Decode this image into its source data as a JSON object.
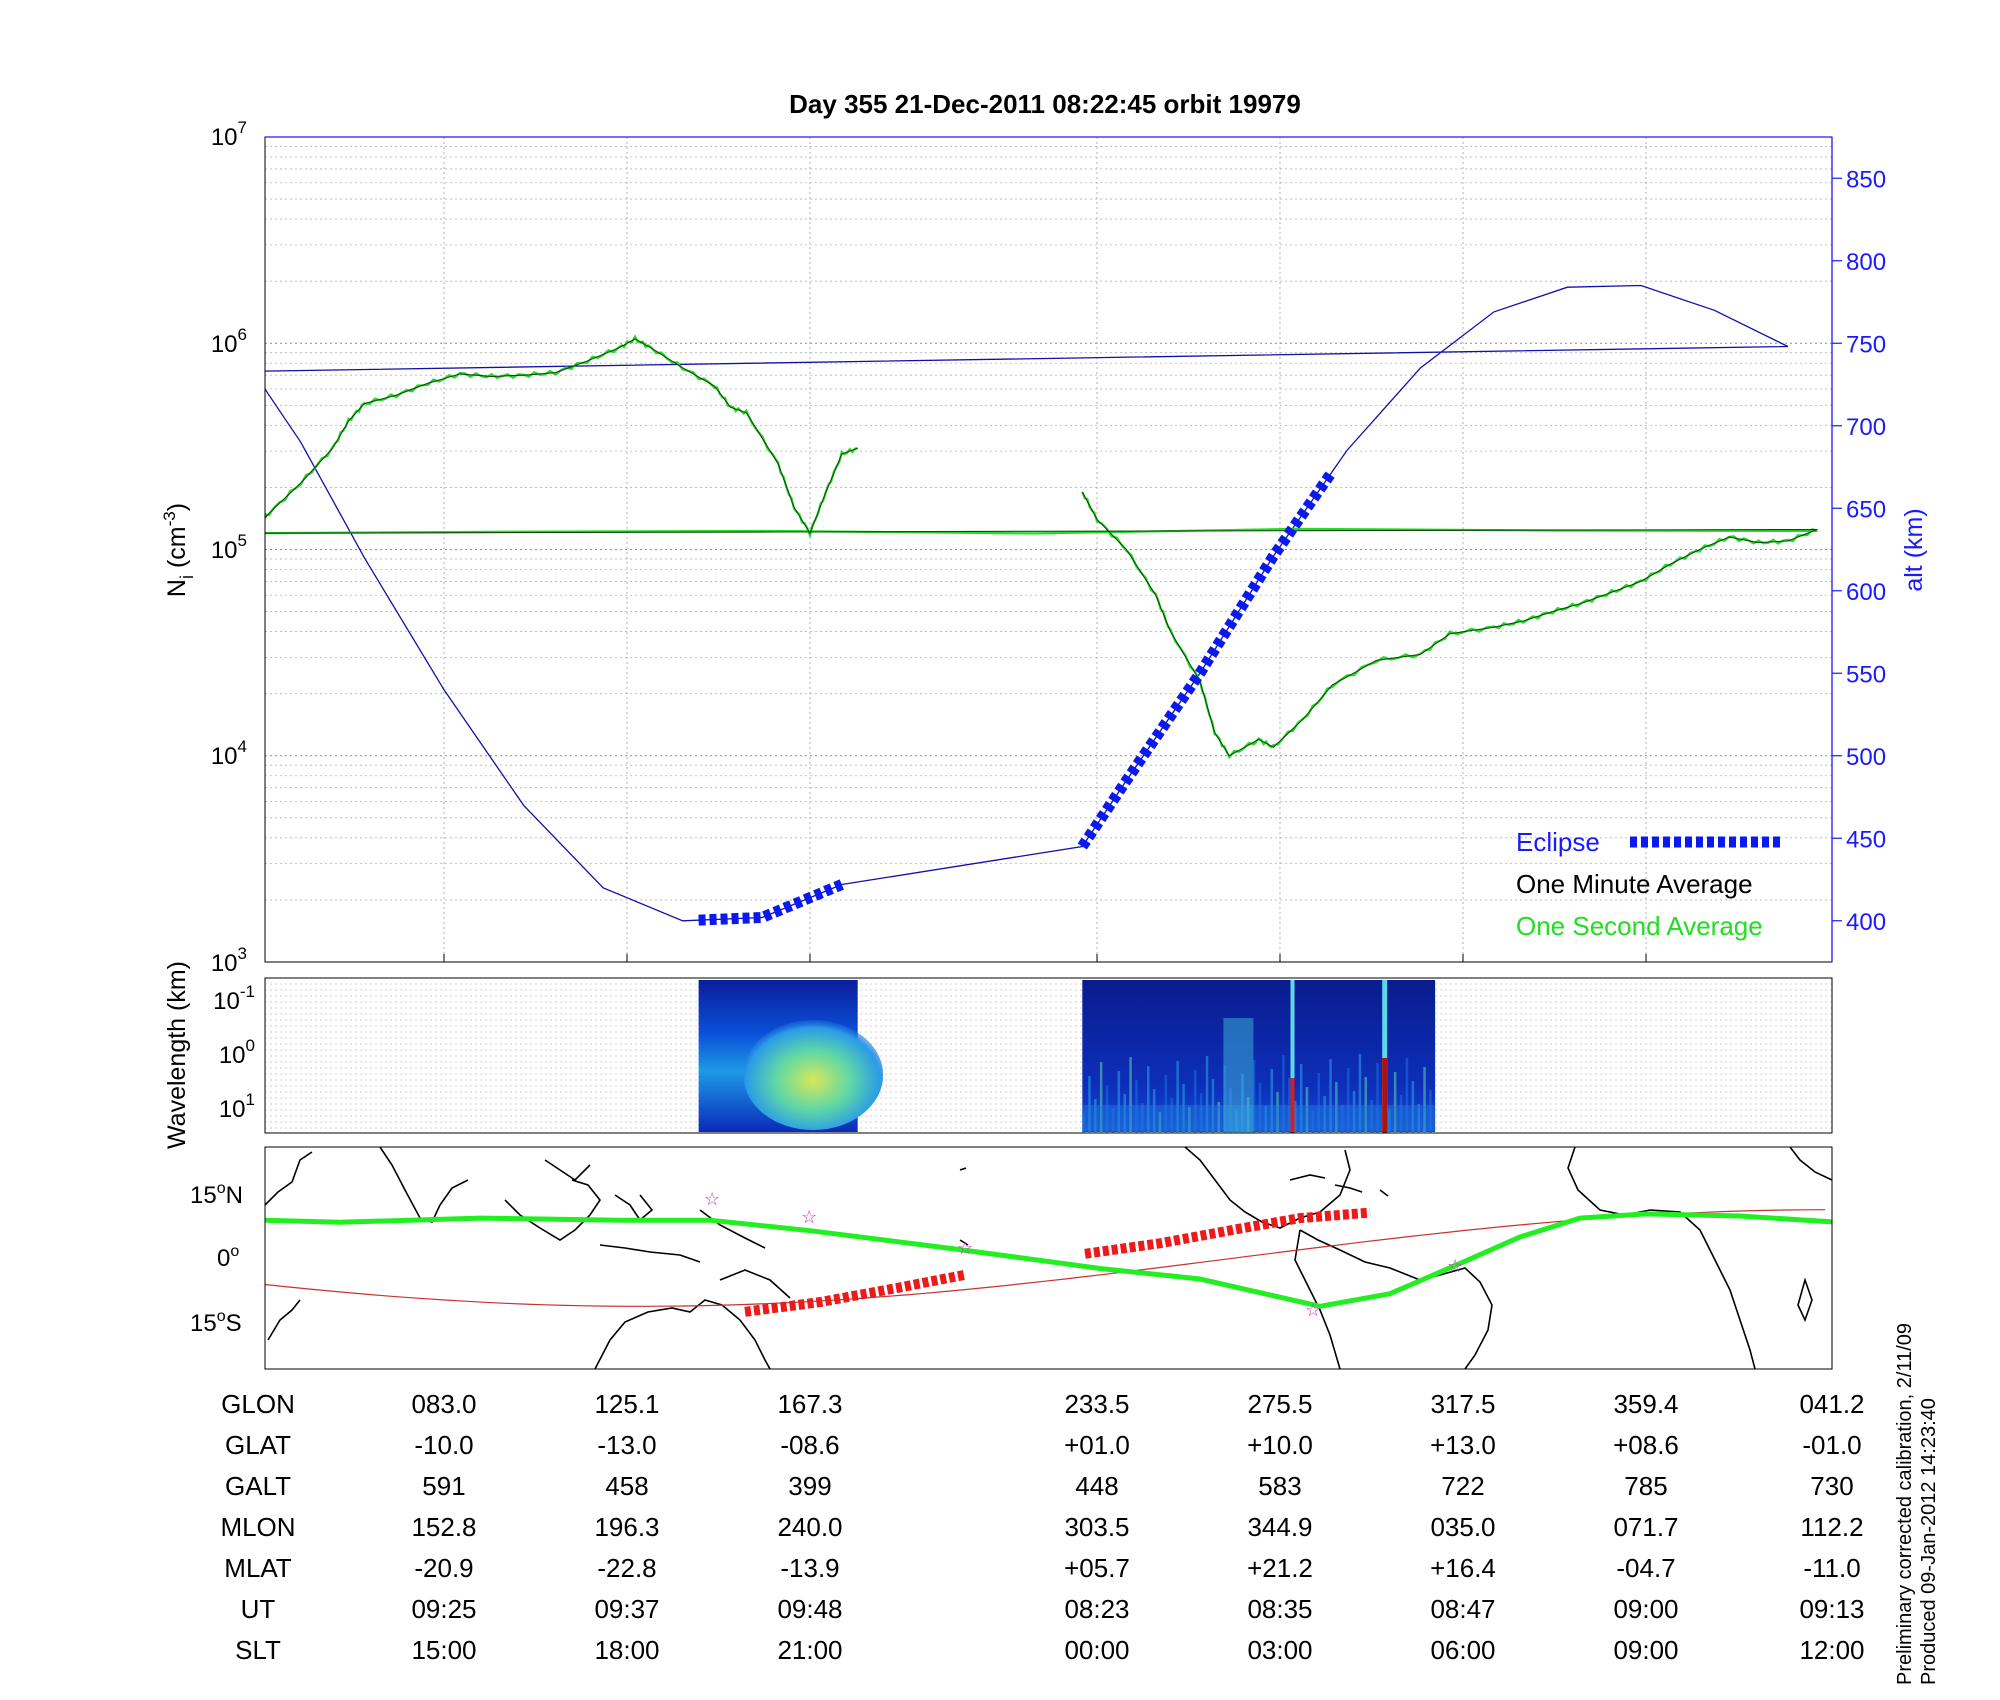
{
  "title": "Day 355  21-Dec-2011 08:22:45   orbit 19979",
  "colors": {
    "density_one_minute": "#000000",
    "density_one_second": "#22dd22",
    "altitude": "#1010aa",
    "axis_right": "#1a1aff",
    "eclipse": "#0a1aee",
    "map_ground_track": "#22ee22",
    "map_eclipse": "#ee1a1a",
    "map_terminator": "#c83232",
    "map_stars": "#cc33cc"
  },
  "panels": {
    "density": {
      "ylabel_main": "N",
      "ylabel_sub": "i",
      "ylabel_unit": " (cm",
      "ylabel_exp": "-3",
      "ylabel_close": ")",
      "yticks": [
        {
          "base": "10",
          "exp": "3"
        },
        {
          "base": "10",
          "exp": "4"
        },
        {
          "base": "10",
          "exp": "5"
        },
        {
          "base": "10",
          "exp": "6"
        },
        {
          "base": "10",
          "exp": "7"
        }
      ],
      "y2label": "alt (km)",
      "y2ticks": [
        "400",
        "450",
        "500",
        "550",
        "600",
        "650",
        "700",
        "750",
        "800",
        "850"
      ],
      "legend": {
        "eclipse": "Eclipse",
        "one_minute": "One Minute Average",
        "one_second": "One Second Average"
      }
    },
    "spectrogram": {
      "ylabel": "Wavelength (km)",
      "yticks": [
        {
          "base": "10",
          "exp": "-1"
        },
        {
          "base": "10",
          "exp": "0"
        },
        {
          "base": "10",
          "exp": "1"
        }
      ]
    },
    "map": {
      "yticks": [
        {
          "value": "15",
          "deg": "o",
          "hemi": "N"
        },
        {
          "value": "0",
          "deg": "o",
          "hemi": ""
        },
        {
          "value": "15",
          "deg": "o",
          "hemi": "S"
        }
      ]
    }
  },
  "chart_data": {
    "type": "line",
    "x_axis": "orbit time, UT 08:23 to 09:13 (wraps at orbit start)",
    "density_scale": "log",
    "ylim_density": [
      1000,
      10000000
    ],
    "ylim_altitude_km": [
      375,
      875
    ],
    "series": [
      {
        "name": "One Minute Average",
        "unit": "cm^-3",
        "segments": [
          [
            [
              "09:13",
              120000
            ],
            [
              "09:14",
              150000
            ],
            [
              "09:16",
              210000
            ],
            [
              "09:18",
              310000
            ],
            [
              "09:19",
              420000
            ],
            [
              "09:20",
              510000
            ],
            [
              "09:22",
              560000
            ],
            [
              "09:24",
              640000
            ],
            [
              "09:26",
              710000
            ],
            [
              "09:28",
              690000
            ],
            [
              "09:30",
              700000
            ],
            [
              "09:32",
              720000
            ],
            [
              "09:34",
              820000
            ],
            [
              "09:36",
              950000
            ],
            [
              "09:37",
              1050000
            ],
            [
              "09:38",
              950000
            ],
            [
              "09:40",
              760000
            ],
            [
              "09:42",
              620000
            ],
            [
              "09:43",
              490000
            ],
            [
              "09:44",
              460000
            ],
            [
              "09:46",
              260000
            ],
            [
              "09:47",
              160000
            ],
            [
              "09:48",
              120000
            ],
            [
              "09:49",
              190000
            ],
            [
              "09:50",
              290000
            ],
            [
              "09:51",
              310000
            ]
          ],
          [
            [
              "08:22",
              190000
            ],
            [
              "08:23",
              140000
            ],
            [
              "08:25",
              100000
            ],
            [
              "08:27",
              60000
            ],
            [
              "08:28",
              40000
            ],
            [
              "08:30",
              23000
            ],
            [
              "08:31",
              13000
            ],
            [
              "08:32",
              10000
            ],
            [
              "08:34",
              12000
            ],
            [
              "08:35",
              11000
            ],
            [
              "08:37",
              15000
            ],
            [
              "08:39",
              22000
            ],
            [
              "08:42",
              29000
            ],
            [
              "08:45",
              31000
            ],
            [
              "08:47",
              39000
            ],
            [
              "08:50",
              42000
            ],
            [
              "08:52",
              45000
            ],
            [
              "08:54",
              50000
            ],
            [
              "08:56",
              55000
            ],
            [
              "08:58",
              62000
            ],
            [
              "09:00",
              70000
            ],
            [
              "09:02",
              85000
            ],
            [
              "09:04",
              100000
            ],
            [
              "09:06",
              115000
            ],
            [
              "09:08",
              108000
            ],
            [
              "09:10",
              110000
            ],
            [
              "09:12",
              125000
            ],
            [
              "09:13",
              120000
            ]
          ]
        ]
      },
      {
        "name": "One Second Average",
        "unit": "cm^-3",
        "note": "follows the one-minute average with small-scale fluctuations"
      },
      {
        "name": "alt (km)",
        "unit": "km",
        "points": [
          [
            "09:13",
            733
          ],
          [
            "09:16",
            690
          ],
          [
            "09:20",
            620
          ],
          [
            "09:25",
            540
          ],
          [
            "09:30",
            470
          ],
          [
            "09:35",
            420
          ],
          [
            "09:40",
            400
          ],
          [
            "09:45",
            402
          ],
          [
            "09:50",
            422
          ],
          [
            "08:22",
            445
          ],
          [
            "08:25",
            485
          ],
          [
            "08:30",
            550
          ],
          [
            "08:35",
            621
          ],
          [
            "08:40",
            685
          ],
          [
            "08:45",
            735
          ],
          [
            "08:50",
            769
          ],
          [
            "08:55",
            784
          ],
          [
            "09:00",
            785
          ],
          [
            "09:05",
            770
          ],
          [
            "09:10",
            748
          ],
          [
            "09:13",
            733
          ]
        ]
      },
      {
        "name": "Eclipse",
        "unit": "km",
        "segments": [
          [
            "09:41",
            "09:51"
          ],
          [
            "08:22",
            "08:39"
          ]
        ]
      }
    ],
    "spectrogram_intervals": [
      [
        "09:41",
        "09:51"
      ],
      [
        "08:22",
        "08:46"
      ]
    ],
    "table": {
      "rows": [
        {
          "label": "GLON",
          "values": [
            "083.0",
            "125.1",
            "167.3",
            "233.5",
            "275.5",
            "317.5",
            "359.4",
            "041.2"
          ]
        },
        {
          "label": "GLAT",
          "values": [
            "-10.0",
            "-13.0",
            "-08.6",
            "+01.0",
            "+10.0",
            "+13.0",
            "+08.6",
            "-01.0"
          ]
        },
        {
          "label": "GALT",
          "values": [
            "591",
            "458",
            "399",
            "448",
            "583",
            "722",
            "785",
            "730"
          ]
        },
        {
          "label": "MLON",
          "values": [
            "152.8",
            "196.3",
            "240.0",
            "303.5",
            "344.9",
            "035.0",
            "071.7",
            "112.2"
          ]
        },
        {
          "label": "MLAT",
          "values": [
            "-20.9",
            "-22.8",
            "-13.9",
            "+05.7",
            "+21.2",
            "+16.4",
            "-04.7",
            "-11.0"
          ]
        },
        {
          "label": "UT",
          "values": [
            "09:25",
            "09:37",
            "09:48",
            "08:23",
            "08:35",
            "08:47",
            "09:00",
            "09:13"
          ]
        },
        {
          "label": "SLT",
          "values": [
            "15:00",
            "18:00",
            "21:00",
            "00:00",
            "03:00",
            "06:00",
            "09:00",
            "12:00"
          ]
        }
      ]
    }
  },
  "footer": {
    "line1": "Preliminary corrected calibration, 2/11/09",
    "line2": "Produced 09-Jan-2012 14:23:40"
  }
}
